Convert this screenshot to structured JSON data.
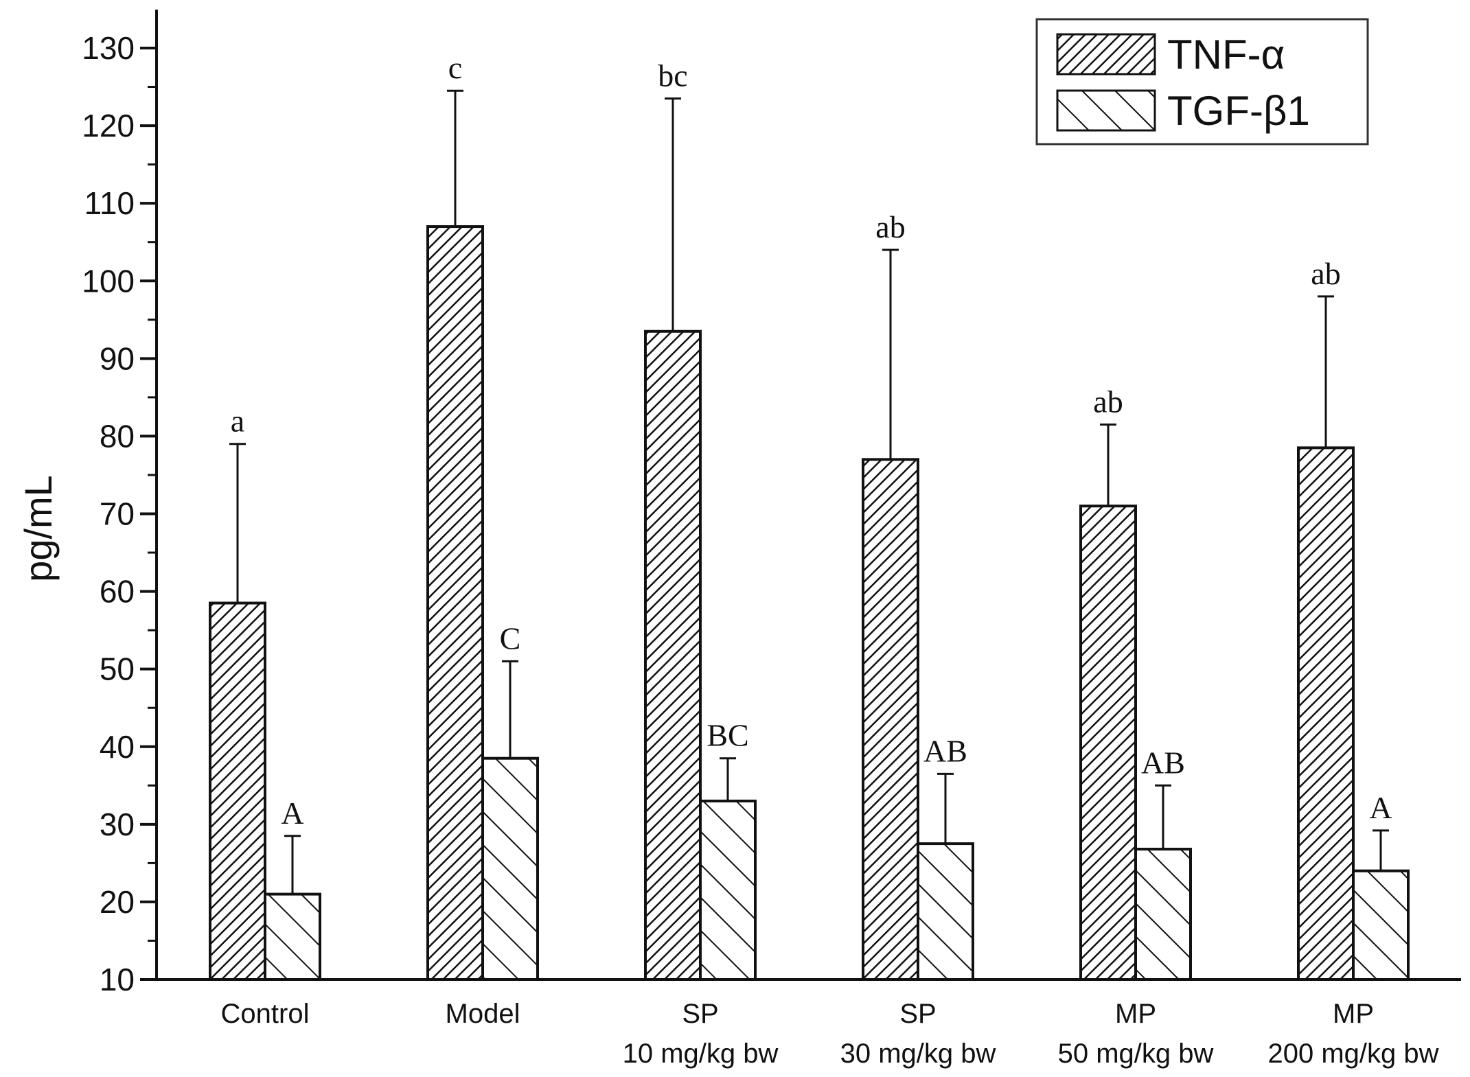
{
  "chart_data": {
    "type": "bar",
    "ylabel": "pg/mL",
    "ylim": [
      10,
      130
    ],
    "yticks": [
      10,
      20,
      30,
      40,
      50,
      60,
      70,
      80,
      90,
      100,
      110,
      120,
      130
    ],
    "categories": [
      [
        "Control"
      ],
      [
        "Model"
      ],
      [
        "SP",
        "10 mg/kg bw"
      ],
      [
        "SP",
        "30 mg/kg bw"
      ],
      [
        "MP",
        "50 mg/kg bw"
      ],
      [
        "MP",
        "200 mg/kg bw"
      ]
    ],
    "legend_position": "top-right",
    "series": [
      {
        "name": "TNF-α",
        "pattern": "dense-diagonal",
        "values": [
          58.5,
          107,
          93.5,
          77,
          71,
          78.5
        ],
        "error": [
          20.5,
          17.5,
          30,
          27,
          10.5,
          19.5
        ],
        "letters": [
          "a",
          "c",
          "bc",
          "ab",
          "ab",
          "ab"
        ]
      },
      {
        "name": "TGF-β1",
        "pattern": "sparse-back-diagonal",
        "values": [
          21,
          38.5,
          33,
          27.5,
          26.8,
          24
        ],
        "error": [
          7.5,
          12.5,
          5.5,
          9,
          8.2,
          5.2
        ],
        "letters": [
          "A",
          "C",
          "BC",
          "AB",
          "AB",
          "A"
        ]
      }
    ]
  }
}
